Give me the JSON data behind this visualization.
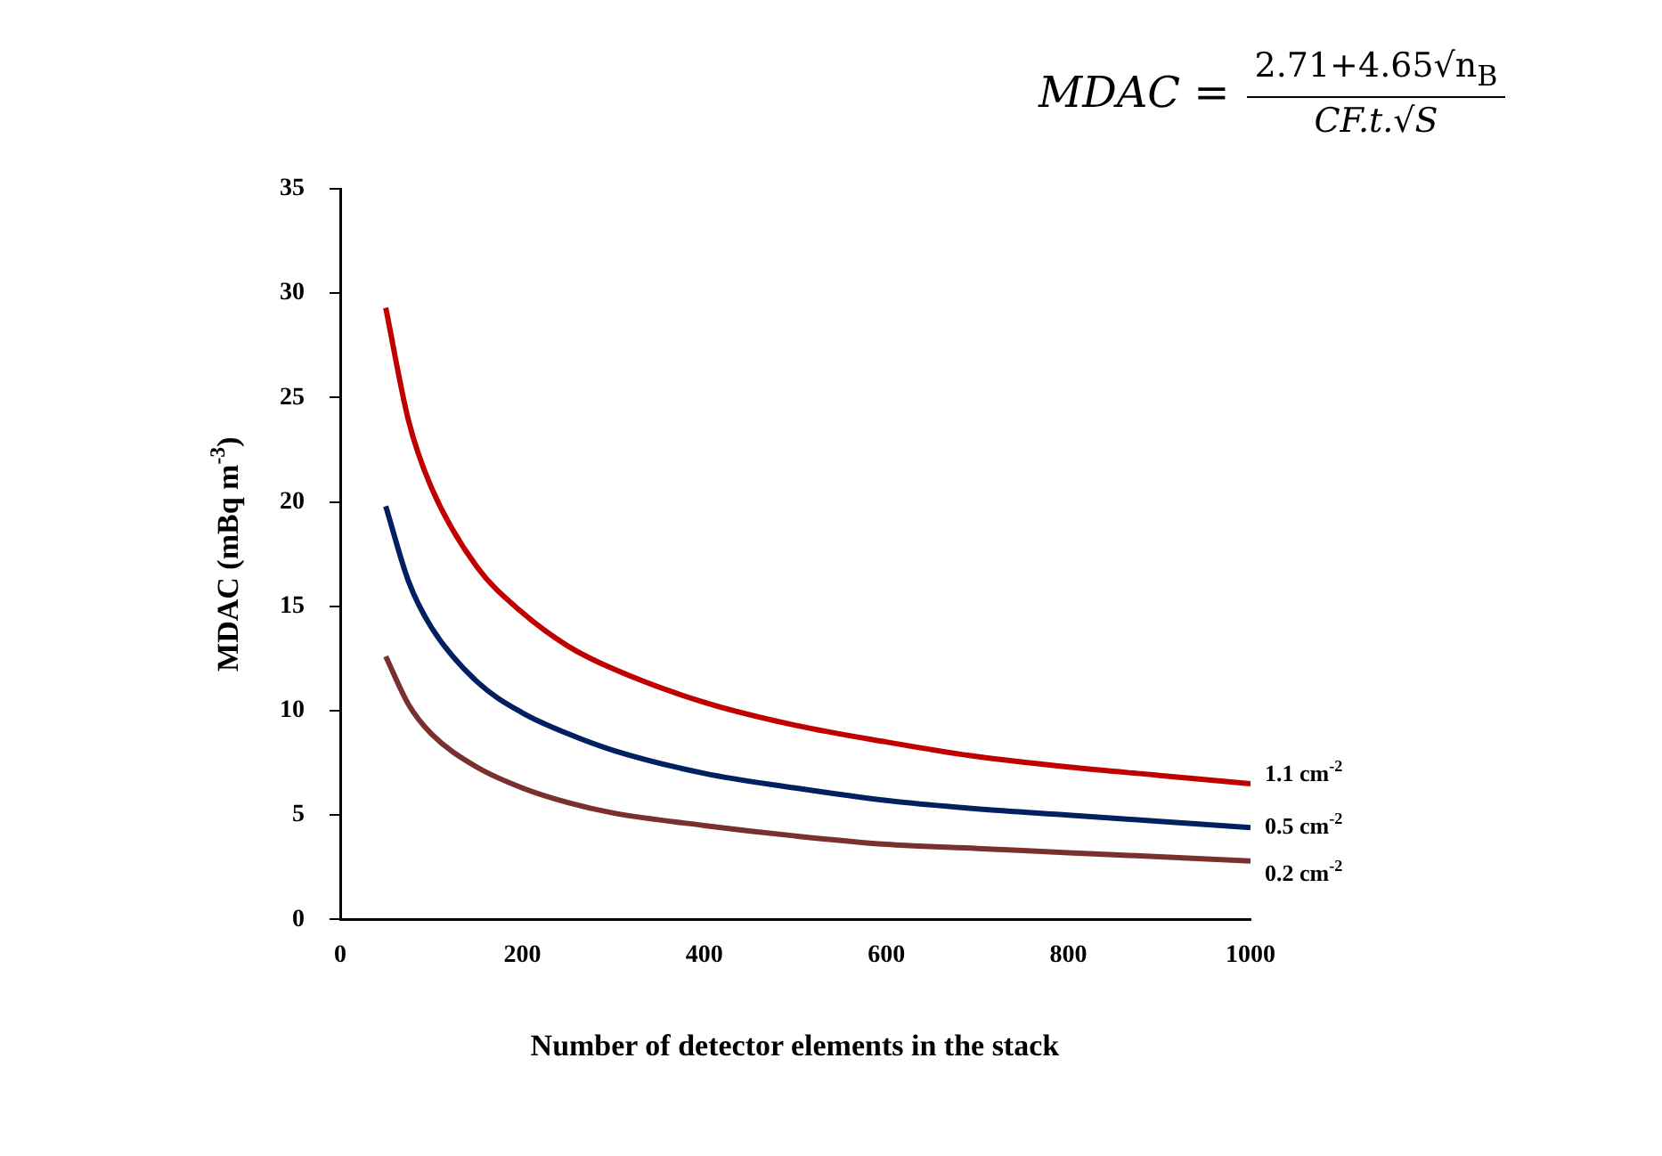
{
  "chart_data": {
    "type": "line",
    "xlabel": "Number of detector elements in the stack",
    "ylabel": "MDAC (mBq m$^{-3}$)",
    "annotations": [
      "MDAC =",
      "2.71+4.65√n$_{B}$",
      "CF.t.√S"
    ],
    "x": [
      50,
      75,
      100,
      150,
      200,
      250,
      300,
      400,
      500,
      600,
      700,
      800,
      900,
      1000
    ],
    "series": [
      {
        "name": "1.1 cm$^{-2}$",
        "color": "#c00000",
        "values": [
          29.3,
          23.9,
          20.7,
          16.9,
          14.7,
          13.1,
          12.0,
          10.4,
          9.3,
          8.5,
          7.8,
          7.3,
          6.9,
          6.5
        ]
      },
      {
        "name": "0.5 cm$^{-2}$",
        "color": "#002060",
        "values": [
          19.8,
          16.2,
          14.0,
          11.4,
          9.9,
          8.9,
          8.1,
          7.0,
          6.3,
          5.7,
          5.3,
          5.0,
          4.7,
          4.4
        ]
      },
      {
        "name": "0.2 cm$^{-2}$",
        "color": "#7b3030",
        "values": [
          12.6,
          10.3,
          8.9,
          7.3,
          6.3,
          5.6,
          5.1,
          4.5,
          4.0,
          3.6,
          3.4,
          3.2,
          3.0,
          2.8
        ]
      }
    ],
    "xlim": [
      0,
      1000
    ],
    "xticks": [
      0,
      200,
      400,
      600,
      800,
      1000
    ],
    "ylim": [
      0,
      35
    ],
    "yticks": [
      0,
      5,
      10,
      15,
      20,
      25,
      30,
      35
    ],
    "grid": false,
    "legend": false,
    "marker": "none",
    "line_style": "solid"
  }
}
